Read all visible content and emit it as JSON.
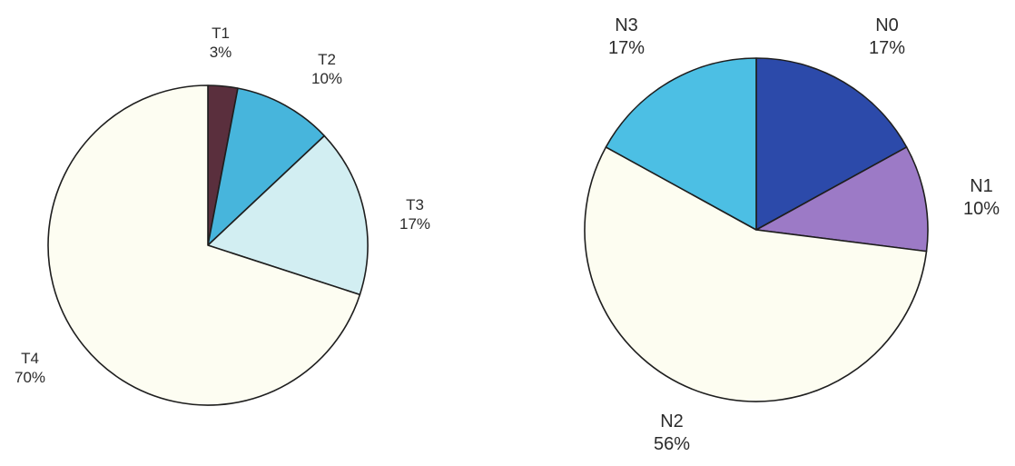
{
  "chart_data": [
    {
      "type": "pie",
      "title": "",
      "start_angle_deg": 0,
      "direction": "clockwise",
      "slices": [
        {
          "label": "T1",
          "value": 3,
          "value_label": "3%",
          "color": "#5a2f3d"
        },
        {
          "label": "T2",
          "value": 10,
          "value_label": "10%",
          "color": "#47b5dc"
        },
        {
          "label": "T3",
          "value": 17,
          "value_label": "17%",
          "color": "#d2eef2"
        },
        {
          "label": "T4",
          "value": 70,
          "value_label": "70%",
          "color": "#fdfdf2"
        }
      ]
    },
    {
      "type": "pie",
      "title": "",
      "start_angle_deg": 0,
      "direction": "clockwise",
      "slices": [
        {
          "label": "N0",
          "value": 17,
          "value_label": "17%",
          "color": "#2c4aaa"
        },
        {
          "label": "N1",
          "value": 10,
          "value_label": "10%",
          "color": "#9c7ac6"
        },
        {
          "label": "N2",
          "value": 56,
          "value_label": "56%",
          "color": "#fdfdf1"
        },
        {
          "label": "N3",
          "value": 17,
          "value_label": "17%",
          "color": "#4cbfe4"
        }
      ]
    }
  ]
}
